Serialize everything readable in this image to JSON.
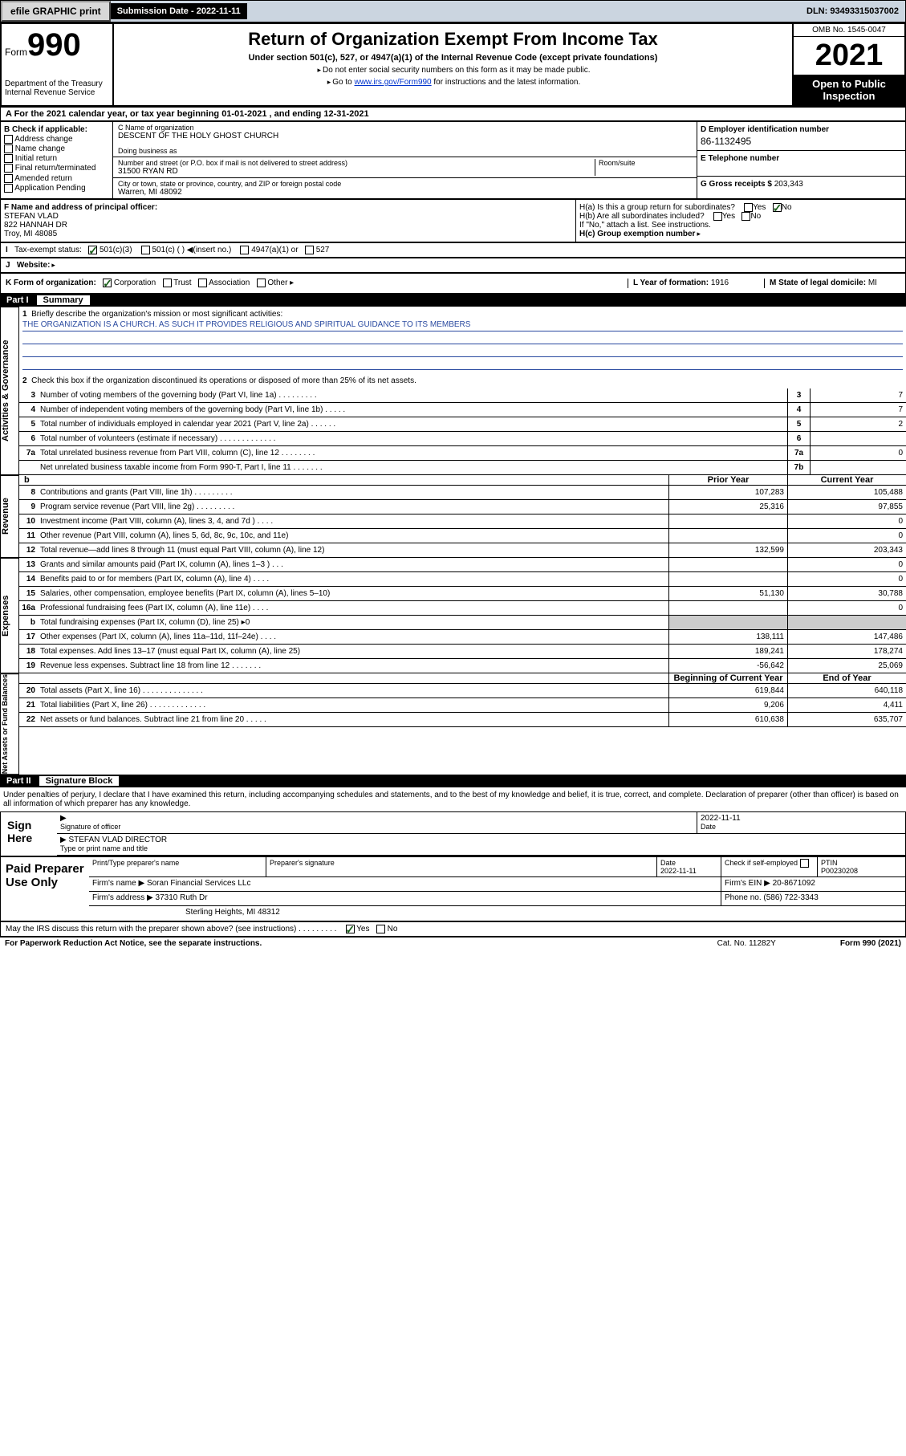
{
  "topbar": {
    "efile": "efile GRAPHIC print",
    "submission_label": "Submission Date - 2022-11-11",
    "dln": "DLN: 93493315037002"
  },
  "header": {
    "form_prefix": "Form",
    "form_no": "990",
    "dept": "Department of the Treasury\nInternal Revenue Service",
    "title": "Return of Organization Exempt From Income Tax",
    "sub1": "Under section 501(c), 527, or 4947(a)(1) of the Internal Revenue Code (except private foundations)",
    "sub2a": "Do not enter social security numbers on this form as it may be made public.",
    "sub2b": "Go to ",
    "link": "www.irs.gov/Form990",
    "sub2c": " for instructions and the latest information.",
    "omb": "OMB No. 1545-0047",
    "year": "2021",
    "open": "Open to Public Inspection"
  },
  "rowA": "A For the 2021 calendar year, or tax year beginning 01-01-2021   , and ending 12-31-2021",
  "checkB": {
    "label": "B Check if applicable:",
    "addr": "Address change",
    "name": "Name change",
    "init": "Initial return",
    "final": "Final return/terminated",
    "amend": "Amended return",
    "app": "Application Pending"
  },
  "entity": {
    "c_label": "C Name of organization",
    "org_name": "DESCENT OF THE HOLY GHOST CHURCH",
    "dba_label": "Doing business as",
    "addr_label": "Number and street (or P.O. box if mail is not delivered to street address)",
    "room_label": "Room/suite",
    "street": "31500 RYAN RD",
    "city_label": "City or town, state or province, country, and ZIP or foreign postal code",
    "city": "Warren, MI  48092",
    "d_label": "D Employer identification number",
    "ein": "86-1132495",
    "e_label": "E Telephone number",
    "g_label": "G Gross receipts $",
    "gross": "203,343"
  },
  "frow": {
    "f_label": "F  Name and address of principal officer:",
    "f_name": "STEFAN VLAD",
    "f_addr1": "822 HANNAH DR",
    "f_addr2": "Troy, MI  48085",
    "ha": "H(a)  Is this a group return for subordinates?",
    "hb": "H(b)  Are all subordinates included?",
    "hb_note": "If \"No,\" attach a list. See instructions.",
    "hc": "H(c)  Group exemption number",
    "yes": "Yes",
    "no": "No"
  },
  "status": {
    "i_label": "Tax-exempt status:",
    "c3": "501(c)(3)",
    "c": "501(c) (  )",
    "insert": "(insert no.)",
    "a1": "4947(a)(1) or",
    "s527": "527"
  },
  "website": {
    "j": "J",
    "label": "Website:"
  },
  "korg": {
    "label": "K Form of organization:",
    "corp": "Corporation",
    "trust": "Trust",
    "assoc": "Association",
    "other": "Other",
    "l_label": "L Year of formation:",
    "l_val": "1916",
    "m_label": "M State of legal domicile:",
    "m_val": "MI"
  },
  "part1": {
    "label": "Part I",
    "title": "Summary"
  },
  "mission": {
    "q1": "Briefly describe the organization's mission or most significant activities:",
    "text": "THE ORGANIZATION IS A CHURCH. AS SUCH IT PROVIDES RELIGIOUS AND SPIRITUAL GUIDANCE TO ITS MEMBERS",
    "q2": "Check this box         if the organization discontinued its operations or disposed of more than 25% of its net assets."
  },
  "gov": [
    {
      "n": "3",
      "t": "Number of voting members of the governing body (Part VI, line 1a)  .   .   .   .   .   .   .   .   .",
      "b": "3",
      "v": "7"
    },
    {
      "n": "4",
      "t": "Number of independent voting members of the governing body (Part VI, line 1b)  .   .   .   .   .",
      "b": "4",
      "v": "7"
    },
    {
      "n": "5",
      "t": "Total number of individuals employed in calendar year 2021 (Part V, line 2a)  .   .   .   .   .   .",
      "b": "5",
      "v": "2"
    },
    {
      "n": "6",
      "t": "Total number of volunteers (estimate if necessary)  .   .   .   .   .   .   .   .   .   .   .   .   .",
      "b": "6",
      "v": ""
    },
    {
      "n": "7a",
      "t": "Total unrelated business revenue from Part VIII, column (C), line 12  .   .   .   .   .   .   .   .",
      "b": "7a",
      "v": "0"
    },
    {
      "n": "",
      "t": "Net unrelated business taxable income from Form 990-T, Part I, line 11  .   .   .   .   .   .   .",
      "b": "7b",
      "v": ""
    }
  ],
  "rev_hdr": {
    "b": "b",
    "prior": "Prior Year",
    "curr": "Current Year"
  },
  "rev": [
    {
      "n": "8",
      "t": "Contributions and grants (Part VIII, line 1h)  .   .   .   .   .   .   .   .   .",
      "p": "107,283",
      "c": "105,488"
    },
    {
      "n": "9",
      "t": "Program service revenue (Part VIII, line 2g)  .   .   .   .   .   .   .   .   .",
      "p": "25,316",
      "c": "97,855"
    },
    {
      "n": "10",
      "t": "Investment income (Part VIII, column (A), lines 3, 4, and 7d )  .   .   .   .",
      "p": "",
      "c": "0"
    },
    {
      "n": "11",
      "t": "Other revenue (Part VIII, column (A), lines 5, 6d, 8c, 9c, 10c, and 11e)",
      "p": "",
      "c": "0"
    },
    {
      "n": "12",
      "t": "Total revenue—add lines 8 through 11 (must equal Part VIII, column (A), line 12)",
      "p": "132,599",
      "c": "203,343"
    }
  ],
  "exp": [
    {
      "n": "13",
      "t": "Grants and similar amounts paid (Part IX, column (A), lines 1–3 )  .   .   .",
      "p": "",
      "c": "0"
    },
    {
      "n": "14",
      "t": "Benefits paid to or for members (Part IX, column (A), line 4)  .   .   .   .",
      "p": "",
      "c": "0"
    },
    {
      "n": "15",
      "t": "Salaries, other compensation, employee benefits (Part IX, column (A), lines 5–10)",
      "p": "51,130",
      "c": "30,788"
    },
    {
      "n": "16a",
      "t": "Professional fundraising fees (Part IX, column (A), line 11e)  .   .   .   .",
      "p": "",
      "c": "0"
    },
    {
      "n": "b",
      "t": "Total fundraising expenses (Part IX, column (D), line 25) ▸0",
      "p": "shade",
      "c": "shade"
    },
    {
      "n": "17",
      "t": "Other expenses (Part IX, column (A), lines 11a–11d, 11f–24e)  .   .   .   .",
      "p": "138,111",
      "c": "147,486"
    },
    {
      "n": "18",
      "t": "Total expenses. Add lines 13–17 (must equal Part IX, column (A), line 25)",
      "p": "189,241",
      "c": "178,274"
    },
    {
      "n": "19",
      "t": "Revenue less expenses. Subtract line 18 from line 12  .   .   .   .   .   .   .",
      "p": "-56,642",
      "c": "25,069"
    }
  ],
  "net_hdr": {
    "boy": "Beginning of Current Year",
    "eoy": "End of Year"
  },
  "net": [
    {
      "n": "20",
      "t": "Total assets (Part X, line 16)  .   .   .   .   .   .   .   .   .   .   .   .   .   .",
      "p": "619,844",
      "c": "640,118"
    },
    {
      "n": "21",
      "t": "Total liabilities (Part X, line 26)  .   .   .   .   .   .   .   .   .   .   .   .   .",
      "p": "9,206",
      "c": "4,411"
    },
    {
      "n": "22",
      "t": "Net assets or fund balances. Subtract line 21 from line 20  .   .   .   .   .",
      "p": "610,638",
      "c": "635,707"
    }
  ],
  "vtabs": {
    "gov": "Activities & Governance",
    "rev": "Revenue",
    "exp": "Expenses",
    "net": "Net Assets or Fund Balances"
  },
  "part2": {
    "label": "Part II",
    "title": "Signature Block"
  },
  "sig": {
    "decl": "Under penalties of perjury, I declare that I have examined this return, including accompanying schedules and statements, and to the best of my knowledge and belief, it is true, correct, and complete. Declaration of preparer (other than officer) is based on all information of which preparer has any knowledge.",
    "sign_here": "Sign Here",
    "sig_officer": "Signature of officer",
    "date_val": "2022-11-11",
    "date": "Date",
    "officer_name": "STEFAN VLAD  DIRECTOR",
    "type_name": "Type or print name and title"
  },
  "paid": {
    "label": "Paid Preparer Use Only",
    "h1": "Print/Type preparer's name",
    "h2": "Preparer's signature",
    "h3": "Date",
    "h3v": "2022-11-11",
    "h4": "Check        if self-employed",
    "h5": "PTIN",
    "h5v": "P00230208",
    "firm_name_l": "Firm's name    ",
    "firm_name": "Soran Financial Services LLc",
    "firm_ein_l": "Firm's EIN ",
    "firm_ein": "20-8671092",
    "firm_addr_l": "Firm's address ",
    "firm_addr1": "37310 Ruth Dr",
    "firm_addr2": "Sterling Heights, MI  48312",
    "phone_l": "Phone no.",
    "phone": "(586) 722-3343",
    "discuss": "May the IRS discuss this return with the preparer shown above? (see instructions)   .   .   .   .   .   .   .   .   .",
    "yes": "Yes",
    "no": "No"
  },
  "footer": {
    "pra": "For Paperwork Reduction Act Notice, see the separate instructions.",
    "cat": "Cat. No. 11282Y",
    "form": "Form 990 (2021)"
  }
}
